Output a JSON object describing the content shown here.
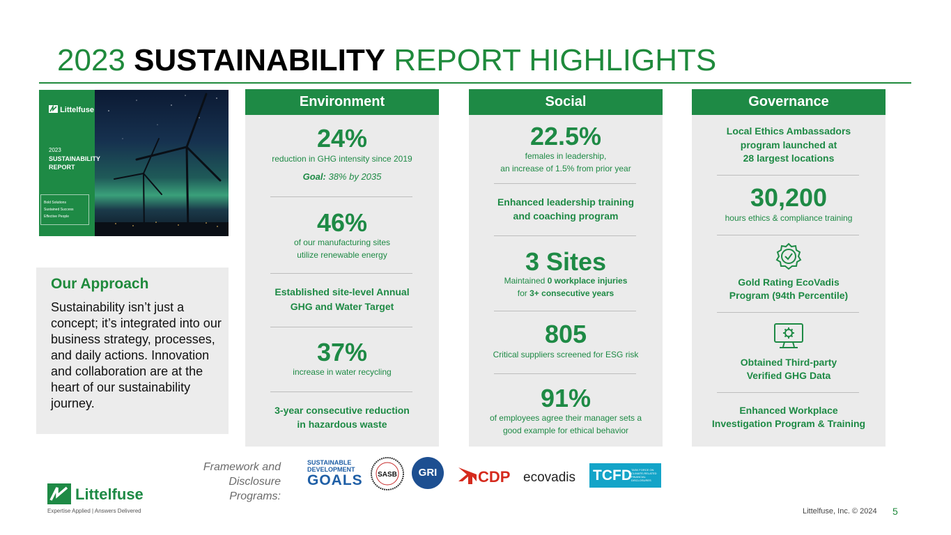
{
  "title": {
    "part1": "2023 ",
    "part2": "SUSTAINABILITY",
    "part3": " REPORT HIGHLIGHTS"
  },
  "cover": {
    "logo": "Littelfuse",
    "year": "2023",
    "title1": "SUSTAINABILITY",
    "title2": "REPORT",
    "lines": [
      "Bold Solutions",
      "Sustained Success",
      "Effective People"
    ]
  },
  "approach": {
    "heading": "Our Approach",
    "text": "Sustainability isn’t just a concept; it’s integrated into our business strategy, processes, and daily actions. Innovation and collaboration are at the heart of our sustainability journey."
  },
  "environment": {
    "header": "Environment",
    "stat1": "24%",
    "desc1": "reduction in GHG intensity since 2019",
    "goal_label": "Goal:",
    "goal_text": " 38% by 2035",
    "stat2": "46%",
    "desc2a": "of our manufacturing sites",
    "desc2b": "utilize renewable energy",
    "item3a": "Established site-level Annual",
    "item3b": "GHG and Water Target",
    "stat4": "37%",
    "desc4": "increase in water recycling",
    "item5a": "3-year consecutive reduction",
    "item5b": "in hazardous waste"
  },
  "social": {
    "header": "Social",
    "stat1": "22.5%",
    "desc1a": "females in leadership,",
    "desc1b": "an increase of 1.5% from prior year",
    "item2a": "Enhanced leadership training",
    "item2b": "and coaching program",
    "stat3": "3 Sites",
    "desc3a_pre": "Maintained ",
    "desc3a_bold": "0 workplace injuries",
    "desc3b_pre": "for ",
    "desc3b_bold": "3+ consecutive years",
    "stat4": "805",
    "desc4": "Critical suppliers screened for ESG risk",
    "stat5": "91%",
    "desc5a": "of employees agree their manager sets a",
    "desc5b": "good example for ethical behavior"
  },
  "governance": {
    "header": "Governance",
    "item1a": "Local Ethics Ambassadors",
    "item1b": "program launched at",
    "item1c": "28 largest locations",
    "stat2": "30,200",
    "desc2": "hours ethics & compliance training",
    "item3a": "Gold Rating EcoVadis",
    "item3b": "Program (94th Percentile)",
    "item4a": "Obtained Third-party",
    "item4b": "Verified GHG Data",
    "item5a": "Enhanced Workplace",
    "item5b": "Investigation Program & Training"
  },
  "footer": {
    "framework_line1": "Framework and",
    "framework_line2": "Disclosure",
    "framework_line3": "Programs:",
    "sdg_line1": "SUSTAINABLE",
    "sdg_line2": "DEVELOPMENT",
    "sdg_line3": "GOALS",
    "sasb": "SASB",
    "gri": "GRI",
    "cdp": "CDP",
    "ecovadis": "ecovadis",
    "tcfd": "TCFD",
    "tcfd_sub": "TASK FORCE ON CLIMATE-RELATED FINANCIAL DISCLOSURES",
    "logo": "Littelfuse",
    "tagline": "Expertise Applied | Answers Delivered",
    "copyright": "Littelfuse, Inc. © 2024",
    "page": "5"
  },
  "colors": {
    "brand_green": "#1e8a45",
    "title_green": "#1f8a3c",
    "panel_gray": "#ebebeb"
  },
  "icons": [
    "gear-check-icon",
    "monitor-gear-icon",
    "littelfuse-logo-icon",
    "wind-turbine-icon"
  ]
}
